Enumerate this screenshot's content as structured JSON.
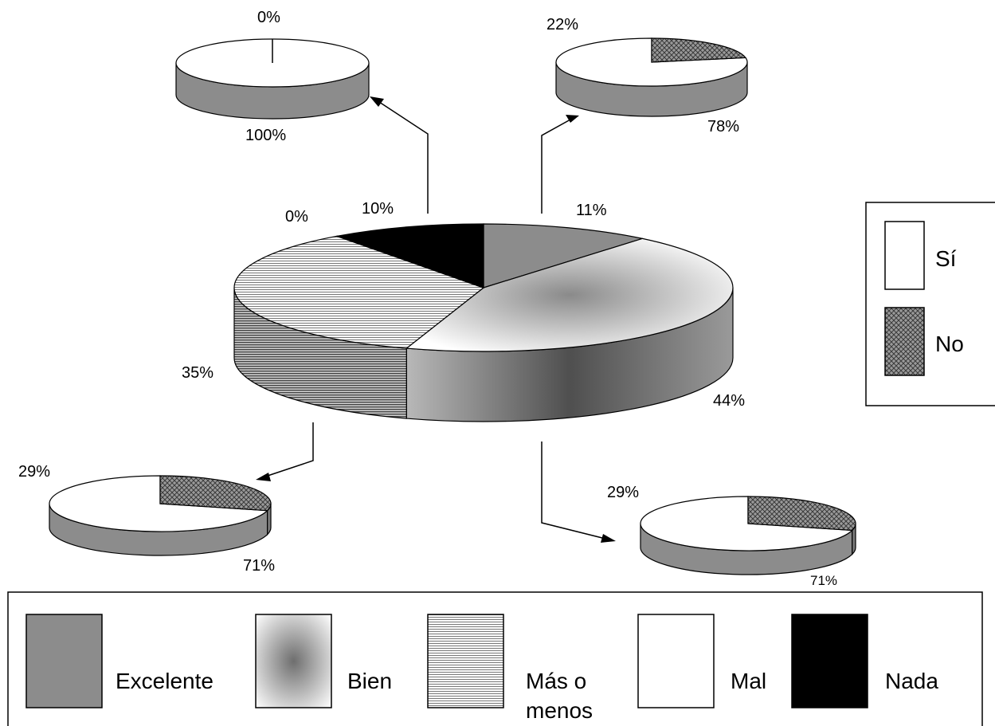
{
  "chart_data": [
    {
      "type": "pie",
      "categories": [
        "Excelente",
        "Bien",
        "Más o menos",
        "Mal",
        "Nada"
      ],
      "values": [
        11,
        44,
        35,
        0,
        10
      ],
      "labels": [
        "11%",
        "44%",
        "35%",
        "0%",
        "10%"
      ],
      "colors": [
        "#8c8c8c",
        "gradient-gray",
        "horizontal-lines",
        "#ffffff",
        "#000000"
      ]
    },
    {
      "type": "pie",
      "parent_category": "Nada",
      "categories": [
        "Sí",
        "No"
      ],
      "values": [
        100,
        0
      ],
      "labels": [
        "100%",
        "0%"
      ]
    },
    {
      "type": "pie",
      "parent_category": "Excelente",
      "categories": [
        "Sí",
        "No"
      ],
      "values": [
        78,
        22
      ],
      "labels": [
        "78%",
        "22%"
      ]
    },
    {
      "type": "pie",
      "parent_category": "Más o menos",
      "categories": [
        "Sí",
        "No"
      ],
      "values": [
        71,
        29
      ],
      "labels": [
        "71%",
        "29%"
      ]
    },
    {
      "type": "pie",
      "parent_category": "Bien",
      "categories": [
        "Sí",
        "No"
      ],
      "values": [
        71,
        29
      ],
      "labels": [
        "71%",
        "29%"
      ]
    }
  ],
  "legend_sub": {
    "items": [
      "Sí",
      "No"
    ],
    "placement": "right"
  },
  "legend_main": {
    "items": [
      "Excelente",
      "Bien",
      "Más o",
      "menos",
      "Mal",
      "Nada"
    ],
    "placement": "bottom"
  }
}
